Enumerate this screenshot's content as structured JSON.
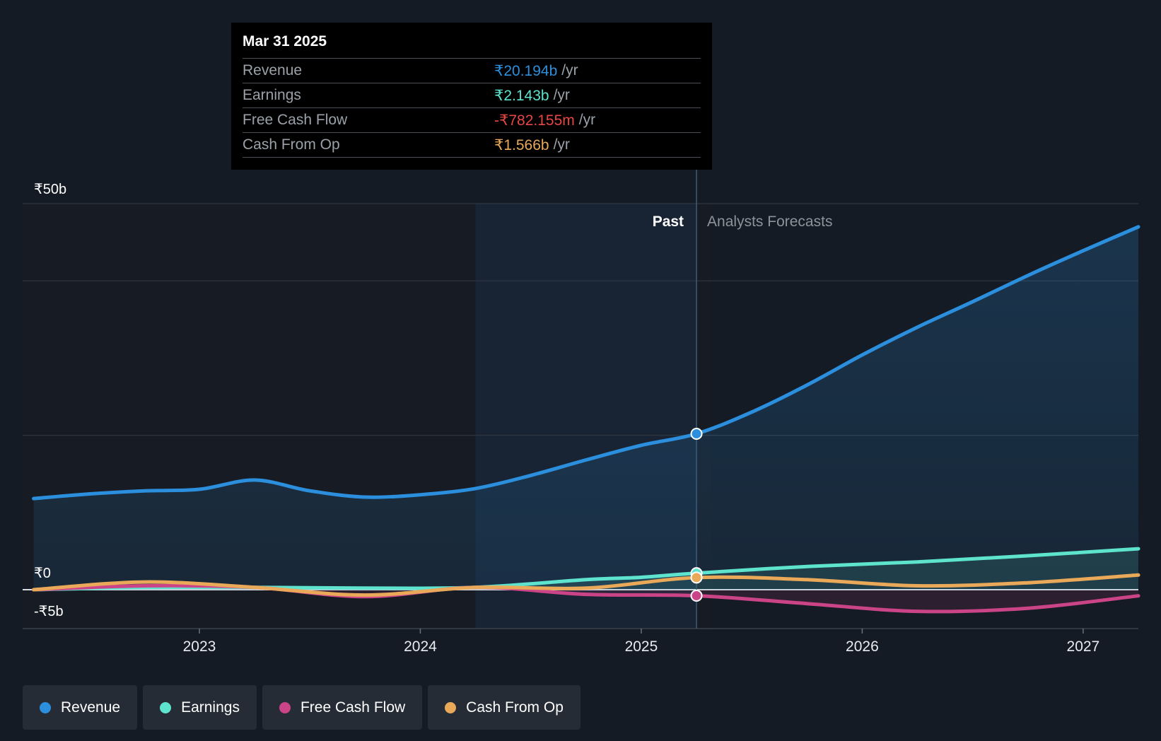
{
  "chart_data": {
    "type": "line",
    "title": "",
    "currency_symbol": "₹",
    "ylim": [
      -5,
      50
    ],
    "xlim": [
      2022.2,
      2027.25
    ],
    "y_axis_labels": [
      {
        "value": 50,
        "label": "₹50b"
      },
      {
        "value": 0,
        "label": "₹0"
      },
      {
        "value": -5,
        "label": "-₹5b"
      }
    ],
    "gridlines": [
      50,
      40,
      20,
      0
    ],
    "x_ticks": [
      {
        "value": 2023,
        "label": "2023"
      },
      {
        "value": 2024,
        "label": "2024"
      },
      {
        "value": 2025,
        "label": "2025"
      },
      {
        "value": 2026,
        "label": "2026"
      },
      {
        "value": 2027,
        "label": "2027"
      }
    ],
    "past_highlight_start": 2024.25,
    "divider_x": 2025.25,
    "past_label": "Past",
    "forecast_label": "Analysts Forecasts",
    "series": [
      {
        "name": "Revenue",
        "color": "#2b8fde",
        "unit": "b",
        "fill": true,
        "points": [
          [
            2022.25,
            11.8
          ],
          [
            2022.5,
            12.4
          ],
          [
            2022.75,
            12.8
          ],
          [
            2023.0,
            13.0
          ],
          [
            2023.25,
            14.2
          ],
          [
            2023.5,
            12.8
          ],
          [
            2023.75,
            12.0
          ],
          [
            2024.0,
            12.3
          ],
          [
            2024.25,
            13.1
          ],
          [
            2024.5,
            14.8
          ],
          [
            2024.75,
            16.8
          ],
          [
            2025.0,
            18.7
          ],
          [
            2025.25,
            20.194
          ],
          [
            2025.5,
            23.0
          ],
          [
            2025.75,
            26.5
          ],
          [
            2026.0,
            30.4
          ],
          [
            2026.25,
            34.0
          ],
          [
            2026.5,
            37.3
          ],
          [
            2026.75,
            40.7
          ],
          [
            2027.0,
            43.9
          ],
          [
            2027.25,
            47.0
          ]
        ]
      },
      {
        "name": "Earnings",
        "color": "#5ee3cf",
        "unit": "b",
        "fill": true,
        "points": [
          [
            2022.25,
            0.0
          ],
          [
            2022.75,
            0.3
          ],
          [
            2023.25,
            0.3
          ],
          [
            2023.75,
            0.2
          ],
          [
            2024.25,
            0.3
          ],
          [
            2024.75,
            1.3
          ],
          [
            2025.0,
            1.6
          ],
          [
            2025.25,
            2.143
          ],
          [
            2025.75,
            3.0
          ],
          [
            2026.25,
            3.6
          ],
          [
            2026.75,
            4.4
          ],
          [
            2027.25,
            5.3
          ]
        ]
      },
      {
        "name": "Free Cash Flow",
        "color": "#cc4488",
        "unit": "b",
        "fill": true,
        "points": [
          [
            2022.25,
            0.0
          ],
          [
            2022.75,
            0.5
          ],
          [
            2023.25,
            0.3
          ],
          [
            2023.75,
            -0.9
          ],
          [
            2024.25,
            0.3
          ],
          [
            2024.75,
            -0.6
          ],
          [
            2025.25,
            -0.782155
          ],
          [
            2025.75,
            -1.8
          ],
          [
            2026.25,
            -2.8
          ],
          [
            2026.75,
            -2.4
          ],
          [
            2027.25,
            -0.8
          ]
        ]
      },
      {
        "name": "Cash From Op",
        "color": "#e9a959",
        "unit": "b",
        "fill": false,
        "points": [
          [
            2022.25,
            0.0
          ],
          [
            2022.75,
            1.0
          ],
          [
            2023.25,
            0.3
          ],
          [
            2023.75,
            -0.7
          ],
          [
            2024.25,
            0.3
          ],
          [
            2024.75,
            0.2
          ],
          [
            2025.25,
            1.566
          ],
          [
            2025.75,
            1.3
          ],
          [
            2026.25,
            0.5
          ],
          [
            2026.75,
            0.9
          ],
          [
            2027.25,
            1.9
          ]
        ]
      }
    ],
    "tooltip": {
      "date": "Mar 31 2025",
      "rows": [
        {
          "label": "Revenue",
          "value": "₹20.194b",
          "unit": "/yr",
          "color": "#2b8fde"
        },
        {
          "label": "Earnings",
          "value": "₹2.143b",
          "unit": "/yr",
          "color": "#5ee3cf"
        },
        {
          "label": "Free Cash Flow",
          "value": "-₹782.155m",
          "unit": "/yr",
          "color": "#e84545"
        },
        {
          "label": "Cash From Op",
          "value": "₹1.566b",
          "unit": "/yr",
          "color": "#e9a959"
        }
      ]
    }
  },
  "legend": [
    {
      "label": "Revenue",
      "color": "#2b8fde"
    },
    {
      "label": "Earnings",
      "color": "#5ee3cf"
    },
    {
      "label": "Free Cash Flow",
      "color": "#cc4488"
    },
    {
      "label": "Cash From Op",
      "color": "#e9a959"
    }
  ]
}
